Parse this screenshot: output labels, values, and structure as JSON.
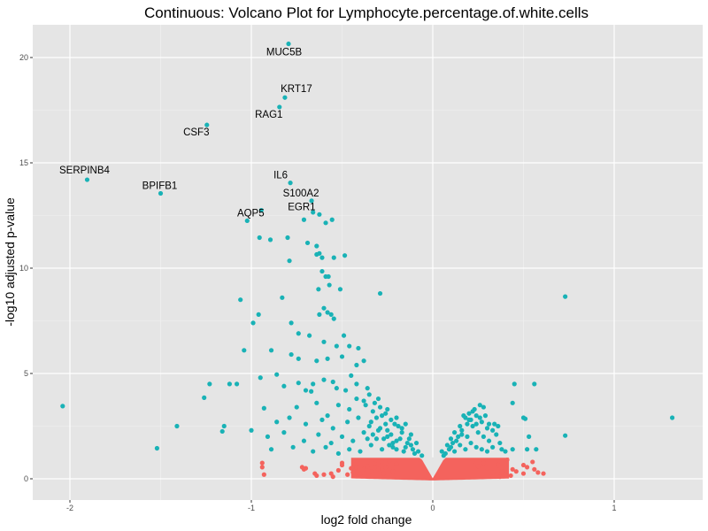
{
  "chart_data": {
    "type": "scatter",
    "title": "Continuous: Volcano Plot for Lymphocyte.percentage.of.white.cells",
    "xlabel": "log2 fold change",
    "ylabel": "-log10 adjusted p-value",
    "xlim": [
      -2.1,
      1.5
    ],
    "ylim": [
      -1.0,
      21.7
    ],
    "xticks": [
      -2,
      -1,
      0,
      1
    ],
    "xtick_labels": [
      "-2",
      "-1",
      "0",
      "1"
    ],
    "yticks": [
      0,
      5,
      10,
      15,
      20
    ],
    "ytick_labels": [
      "0",
      "5",
      "10",
      "15",
      "20"
    ],
    "grid": true,
    "legend": "none",
    "colors": {
      "significant": "#19B2B6",
      "not_significant": "#F4635D",
      "panel": "#E5E5E5",
      "grid": "#FFFFFF"
    },
    "labeled_points": [
      {
        "label": "MUC5B",
        "x": -0.795,
        "y": 20.65
      },
      {
        "label": "KRT17",
        "x": -0.815,
        "y": 18.1
      },
      {
        "label": "RAG1",
        "x": -0.845,
        "y": 17.65
      },
      {
        "label": "CSF3",
        "x": -1.245,
        "y": 16.8
      },
      {
        "label": "SERPINB4",
        "x": -1.905,
        "y": 14.2
      },
      {
        "label": "BPIFB1",
        "x": -1.5,
        "y": 13.55
      },
      {
        "label": "IL6",
        "x": -0.785,
        "y": 14.05
      },
      {
        "label": "S100A2",
        "x": -0.668,
        "y": 13.2
      },
      {
        "label": "EGR1",
        "x": -0.625,
        "y": 12.55
      },
      {
        "label": "AQP5",
        "x": -1.023,
        "y": 12.25
      }
    ],
    "series": [
      {
        "name": "significant",
        "points": [
          [
            -0.945,
            12.75
          ],
          [
            -0.71,
            12.3
          ],
          [
            -0.66,
            12.65
          ],
          [
            -0.59,
            12.15
          ],
          [
            -0.555,
            12.3
          ],
          [
            -0.955,
            11.45
          ],
          [
            -0.895,
            11.35
          ],
          [
            -0.8,
            11.45
          ],
          [
            -0.69,
            11.2
          ],
          [
            -0.64,
            11.05
          ],
          [
            -0.79,
            10.35
          ],
          [
            -0.64,
            10.65
          ],
          [
            -0.625,
            10.7
          ],
          [
            -0.61,
            10.5
          ],
          [
            -0.545,
            10.5
          ],
          [
            -0.485,
            10.6
          ],
          [
            -0.61,
            9.85
          ],
          [
            -0.59,
            9.6
          ],
          [
            -0.575,
            9.6
          ],
          [
            -0.57,
            9.2
          ],
          [
            -0.63,
            9.0
          ],
          [
            -0.51,
            9.0
          ],
          [
            -1.06,
            8.5
          ],
          [
            -0.83,
            8.6
          ],
          [
            -0.6,
            8.1
          ],
          [
            -0.58,
            7.9
          ],
          [
            -0.56,
            7.8
          ],
          [
            -0.545,
            7.6
          ],
          [
            -0.625,
            7.8
          ],
          [
            -0.29,
            8.8
          ],
          [
            -0.99,
            7.4
          ],
          [
            -0.96,
            7.8
          ],
          [
            -0.78,
            7.4
          ],
          [
            -0.74,
            6.9
          ],
          [
            -0.68,
            6.8
          ],
          [
            -0.6,
            6.5
          ],
          [
            -0.49,
            6.8
          ],
          [
            -0.53,
            6.3
          ],
          [
            -1.04,
            6.1
          ],
          [
            -0.89,
            6.1
          ],
          [
            -0.78,
            5.9
          ],
          [
            -0.74,
            5.7
          ],
          [
            -0.64,
            5.6
          ],
          [
            -0.58,
            5.7
          ],
          [
            -0.5,
            5.8
          ],
          [
            -0.46,
            6.3
          ],
          [
            -0.41,
            6.2
          ],
          [
            -0.86,
            4.95
          ],
          [
            -0.74,
            4.55
          ],
          [
            -0.66,
            4.5
          ],
          [
            -0.6,
            4.7
          ],
          [
            -0.55,
            4.6
          ],
          [
            -0.45,
            4.9
          ],
          [
            -0.38,
            5.6
          ],
          [
            -0.42,
            5.4
          ],
          [
            -1.08,
            4.5
          ],
          [
            -0.95,
            4.8
          ],
          [
            -0.82,
            4.4
          ],
          [
            -0.7,
            4.2
          ],
          [
            -0.67,
            4.15
          ],
          [
            -0.53,
            4.3
          ],
          [
            -0.48,
            4.2
          ],
          [
            -0.42,
            4.5
          ],
          [
            -0.36,
            4.3
          ],
          [
            -1.26,
            3.85
          ],
          [
            -0.93,
            3.35
          ],
          [
            -0.75,
            3.4
          ],
          [
            -0.64,
            3.6
          ],
          [
            -0.58,
            3.0
          ],
          [
            -0.52,
            3.5
          ],
          [
            -0.46,
            3.3
          ],
          [
            -0.42,
            3.8
          ],
          [
            -0.38,
            3.7
          ],
          [
            -0.33,
            3.2
          ],
          [
            -0.86,
            2.7
          ],
          [
            -0.79,
            2.9
          ],
          [
            -0.7,
            2.6
          ],
          [
            -0.61,
            2.8
          ],
          [
            -0.55,
            2.4
          ],
          [
            -0.47,
            2.7
          ],
          [
            -0.41,
            2.9
          ],
          [
            -0.35,
            2.5
          ],
          [
            -0.28,
            3.0
          ],
          [
            -0.21,
            2.6
          ],
          [
            -0.91,
            2.0
          ],
          [
            -0.82,
            2.2
          ],
          [
            -0.71,
            1.8
          ],
          [
            -0.63,
            2.1
          ],
          [
            -0.56,
            1.7
          ],
          [
            -0.5,
            2.0
          ],
          [
            -0.44,
            1.8
          ],
          [
            -0.38,
            2.2
          ],
          [
            -0.31,
            1.9
          ],
          [
            -0.25,
            2.3
          ],
          [
            -0.18,
            1.9
          ],
          [
            -0.12,
            1.6
          ],
          [
            -0.89,
            1.4
          ],
          [
            -0.77,
            1.5
          ],
          [
            -0.66,
            1.3
          ],
          [
            -0.59,
            1.5
          ],
          [
            -0.52,
            1.2
          ],
          [
            -0.46,
            1.4
          ],
          [
            -0.4,
            1.3
          ],
          [
            -0.34,
            1.6
          ],
          [
            -0.28,
            1.4
          ],
          [
            -0.22,
            1.5
          ],
          [
            -0.16,
            1.3
          ],
          [
            -0.1,
            1.2
          ],
          [
            -0.06,
            1.1
          ],
          [
            -0.37,
            3.5
          ],
          [
            -0.31,
            2.9
          ],
          [
            -0.26,
            2.6
          ],
          [
            -0.23,
            2.1
          ],
          [
            -0.2,
            1.8
          ],
          [
            -0.17,
            2.2
          ],
          [
            -0.14,
            1.7
          ],
          [
            -0.34,
            2.7
          ],
          [
            -0.3,
            2.3
          ],
          [
            -0.27,
            1.9
          ],
          [
            -0.24,
            1.6
          ],
          [
            -0.2,
            1.4
          ],
          [
            -0.36,
            1.9
          ],
          [
            -0.33,
            2.1
          ],
          [
            -0.29,
            2.4
          ],
          [
            -0.25,
            2.0
          ],
          [
            -0.22,
            1.7
          ],
          [
            -0.19,
            2.5
          ],
          [
            -0.15,
            1.5
          ],
          [
            -0.13,
            1.9
          ],
          [
            -0.11,
            1.4
          ],
          [
            -0.08,
            1.3
          ],
          [
            -0.35,
            4.0
          ],
          [
            -0.32,
            3.6
          ],
          [
            -0.29,
            3.4
          ],
          [
            -0.26,
            3.1
          ],
          [
            -0.23,
            2.8
          ],
          [
            -0.2,
            2.9
          ],
          [
            -0.17,
            2.4
          ],
          [
            -0.3,
            3.8
          ],
          [
            -0.25,
            3.3
          ],
          [
            -0.15,
            2.6
          ],
          [
            -0.12,
            2.1
          ],
          [
            -0.09,
            1.7
          ],
          [
            -1.52,
            1.45
          ],
          [
            -1.41,
            2.5
          ],
          [
            -1.15,
            2.5
          ],
          [
            -1.16,
            2.25
          ],
          [
            -1.23,
            4.5
          ],
          [
            -1.0,
            2.3
          ],
          [
            -2.04,
            3.45
          ],
          [
            -1.12,
            4.5
          ],
          [
            0.05,
            1.3
          ],
          [
            0.08,
            1.6
          ],
          [
            0.1,
            1.9
          ],
          [
            0.12,
            2.2
          ],
          [
            0.15,
            2.5
          ],
          [
            0.18,
            2.9
          ],
          [
            0.2,
            3.1
          ],
          [
            0.23,
            3.3
          ],
          [
            0.26,
            3.5
          ],
          [
            0.28,
            3.4
          ],
          [
            0.06,
            1.1
          ],
          [
            0.09,
            1.4
          ],
          [
            0.11,
            1.7
          ],
          [
            0.14,
            2.0
          ],
          [
            0.16,
            2.3
          ],
          [
            0.19,
            2.6
          ],
          [
            0.21,
            2.8
          ],
          [
            0.24,
            3.0
          ],
          [
            0.27,
            2.7
          ],
          [
            0.3,
            2.4
          ],
          [
            0.07,
            1.2
          ],
          [
            0.1,
            1.5
          ],
          [
            0.13,
            1.8
          ],
          [
            0.16,
            2.1
          ],
          [
            0.19,
            2.0
          ],
          [
            0.22,
            2.5
          ],
          [
            0.25,
            2.2
          ],
          [
            0.28,
            2.0
          ],
          [
            0.31,
            1.8
          ],
          [
            0.33,
            1.5
          ],
          [
            0.12,
            1.3
          ],
          [
            0.15,
            1.6
          ],
          [
            0.18,
            1.4
          ],
          [
            0.21,
            1.7
          ],
          [
            0.24,
            1.5
          ],
          [
            0.27,
            1.4
          ],
          [
            0.3,
            1.3
          ],
          [
            0.34,
            2.6
          ],
          [
            0.35,
            2.1
          ],
          [
            0.38,
            1.4
          ],
          [
            0.17,
            3.0
          ],
          [
            0.2,
            2.8
          ],
          [
            0.22,
            3.2
          ],
          [
            0.24,
            2.6
          ],
          [
            0.26,
            2.9
          ],
          [
            0.29,
            3.0
          ],
          [
            0.31,
            2.6
          ],
          [
            0.33,
            2.3
          ],
          [
            0.36,
            2.5
          ],
          [
            0.37,
            1.7
          ],
          [
            0.4,
            1.3
          ],
          [
            0.44,
            1.4
          ],
          [
            0.5,
            2.9
          ],
          [
            0.51,
            2.85
          ],
          [
            0.53,
            2.0
          ],
          [
            0.52,
            1.4
          ],
          [
            0.57,
            1.4
          ],
          [
            0.44,
            3.6
          ],
          [
            0.45,
            4.5
          ],
          [
            0.56,
            4.5
          ],
          [
            0.73,
            8.65
          ],
          [
            0.73,
            2.05
          ],
          [
            1.32,
            2.9
          ]
        ]
      },
      {
        "name": "not_significant",
        "points": [
          [
            -0.94,
            0.75
          ],
          [
            -0.94,
            0.55
          ],
          [
            -0.93,
            0.2
          ],
          [
            -0.72,
            0.55
          ],
          [
            -0.71,
            0.45
          ],
          [
            -0.7,
            0.5
          ],
          [
            -0.65,
            0.25
          ],
          [
            -0.64,
            0.15
          ],
          [
            -0.6,
            0.2
          ],
          [
            -0.56,
            0.25
          ],
          [
            -0.5,
            0.75
          ],
          [
            -0.5,
            0.65
          ],
          [
            -0.45,
            0.5
          ],
          [
            -0.44,
            0.3
          ],
          [
            -0.42,
            0.55
          ],
          [
            -0.4,
            0.25
          ],
          [
            -0.38,
            0.45
          ],
          [
            -0.36,
            0.6
          ],
          [
            -0.34,
            0.35
          ],
          [
            -0.32,
            0.7
          ],
          [
            -0.55,
            0.1
          ],
          [
            -0.52,
            0.4
          ],
          [
            -0.47,
            0.2
          ],
          [
            -0.3,
            0.45
          ],
          [
            -0.28,
            0.8
          ],
          [
            -0.27,
            0.25
          ],
          [
            -0.26,
            0.55
          ],
          [
            -0.24,
            0.85
          ],
          [
            -0.22,
            0.35
          ],
          [
            -0.2,
            0.7
          ],
          [
            0.22,
            0.85
          ],
          [
            0.25,
            0.6
          ],
          [
            0.28,
            0.75
          ],
          [
            0.3,
            0.5
          ],
          [
            0.33,
            0.3
          ],
          [
            0.36,
            0.65
          ],
          [
            0.38,
            0.35
          ],
          [
            0.4,
            0.2
          ],
          [
            0.44,
            0.45
          ],
          [
            0.46,
            0.35
          ],
          [
            0.43,
            0.15
          ],
          [
            0.37,
            0.1
          ],
          [
            0.5,
            0.65
          ],
          [
            0.52,
            0.55
          ],
          [
            0.55,
            0.8
          ],
          [
            0.5,
            0.25
          ],
          [
            0.56,
            0.45
          ],
          [
            0.58,
            0.3
          ],
          [
            0.61,
            0.25
          ],
          [
            0.41,
            0.9
          ]
        ],
        "band": {
          "x_min": -0.45,
          "x_max": 0.42,
          "y_max": 1.0,
          "note": "dense cloud of non-significant genes near log2 fold change 0"
        }
      }
    ]
  }
}
